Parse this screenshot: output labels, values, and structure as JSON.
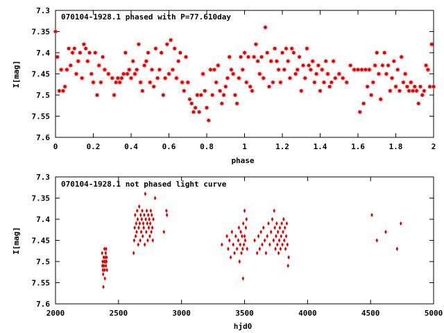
{
  "chart_data": [
    {
      "type": "scatter",
      "title": "070104-1928.1 phased with P=77.610day",
      "xlabel": "phase",
      "ylabel": "I[mag]",
      "xlim": [
        0,
        2
      ],
      "ylim": [
        7.3,
        7.6
      ],
      "y_inverted": true,
      "x_ticks": [
        0,
        0.2,
        0.4,
        0.6,
        0.8,
        1,
        1.2,
        1.4,
        1.6,
        1.8,
        2
      ],
      "y_ticks": [
        7.3,
        7.35,
        7.4,
        7.45,
        7.5,
        7.55,
        7.6
      ],
      "marker_color": "#e00000",
      "marker": "star",
      "grid": false,
      "points": [
        [
          0.0,
          7.35
        ],
        [
          0.01,
          7.41
        ],
        [
          0.02,
          7.49
        ],
        [
          0.03,
          7.44
        ],
        [
          0.04,
          7.49
        ],
        [
          0.05,
          7.48
        ],
        [
          0.06,
          7.44
        ],
        [
          0.07,
          7.39
        ],
        [
          0.08,
          7.43
        ],
        [
          0.09,
          7.4
        ],
        [
          0.1,
          7.39
        ],
        [
          0.11,
          7.45
        ],
        [
          0.12,
          7.42
        ],
        [
          0.13,
          7.4
        ],
        [
          0.14,
          7.46
        ],
        [
          0.15,
          7.38
        ],
        [
          0.16,
          7.39
        ],
        [
          0.17,
          7.42
        ],
        [
          0.18,
          7.4
        ],
        [
          0.19,
          7.45
        ],
        [
          0.2,
          7.47
        ],
        [
          0.21,
          7.4
        ],
        [
          0.22,
          7.5
        ],
        [
          0.23,
          7.43
        ],
        [
          0.24,
          7.47
        ],
        [
          0.25,
          7.41
        ],
        [
          0.26,
          7.44
        ],
        [
          0.28,
          7.45
        ],
        [
          0.3,
          7.46
        ],
        [
          0.31,
          7.5
        ],
        [
          0.32,
          7.47
        ],
        [
          0.33,
          7.46
        ],
        [
          0.34,
          7.47
        ],
        [
          0.35,
          7.46
        ],
        [
          0.36,
          7.45
        ],
        [
          0.37,
          7.4
        ],
        [
          0.38,
          7.45
        ],
        [
          0.39,
          7.44
        ],
        [
          0.4,
          7.46
        ],
        [
          0.41,
          7.42
        ],
        [
          0.42,
          7.45
        ],
        [
          0.43,
          7.44
        ],
        [
          0.44,
          7.38
        ],
        [
          0.45,
          7.47
        ],
        [
          0.46,
          7.49
        ],
        [
          0.47,
          7.43
        ],
        [
          0.48,
          7.42
        ],
        [
          0.49,
          7.4
        ],
        [
          0.5,
          7.47
        ],
        [
          0.51,
          7.44
        ],
        [
          0.52,
          7.48
        ],
        [
          0.53,
          7.39
        ],
        [
          0.54,
          7.46
        ],
        [
          0.55,
          7.44
        ],
        [
          0.56,
          7.4
        ],
        [
          0.57,
          7.5
        ],
        [
          0.58,
          7.46
        ],
        [
          0.59,
          7.38
        ],
        [
          0.6,
          7.45
        ],
        [
          0.61,
          7.37
        ],
        [
          0.62,
          7.44
        ],
        [
          0.63,
          7.39
        ],
        [
          0.64,
          7.46
        ],
        [
          0.65,
          7.42
        ],
        [
          0.66,
          7.4
        ],
        [
          0.67,
          7.47
        ],
        [
          0.68,
          7.49
        ],
        [
          0.69,
          7.41
        ],
        [
          0.7,
          7.47
        ],
        [
          0.71,
          7.51
        ],
        [
          0.72,
          7.52
        ],
        [
          0.73,
          7.54
        ],
        [
          0.74,
          7.53
        ],
        [
          0.75,
          7.5
        ],
        [
          0.76,
          7.54
        ],
        [
          0.77,
          7.5
        ],
        [
          0.78,
          7.45
        ],
        [
          0.79,
          7.49
        ],
        [
          0.8,
          7.53
        ],
        [
          0.81,
          7.56
        ],
        [
          0.82,
          7.44
        ],
        [
          0.83,
          7.5
        ],
        [
          0.84,
          7.44
        ],
        [
          0.85,
          7.47
        ],
        [
          0.86,
          7.43
        ],
        [
          0.87,
          7.49
        ],
        [
          0.88,
          7.52
        ],
        [
          0.89,
          7.5
        ],
        [
          0.9,
          7.48
        ],
        [
          0.91,
          7.46
        ],
        [
          0.92,
          7.41
        ],
        [
          0.93,
          7.44
        ],
        [
          0.94,
          7.45
        ],
        [
          0.95,
          7.5
        ],
        [
          0.96,
          7.52
        ],
        [
          0.97,
          7.46
        ],
        [
          0.98,
          7.41
        ],
        [
          0.99,
          7.44
        ],
        [
          1.0,
          7.4
        ],
        [
          1.01,
          7.47
        ],
        [
          1.02,
          7.41
        ],
        [
          1.03,
          7.48
        ],
        [
          1.04,
          7.49
        ],
        [
          1.05,
          7.41
        ],
        [
          1.06,
          7.38
        ],
        [
          1.07,
          7.42
        ],
        [
          1.08,
          7.45
        ],
        [
          1.09,
          7.41
        ],
        [
          1.1,
          7.46
        ],
        [
          1.11,
          7.34
        ],
        [
          1.12,
          7.4
        ],
        [
          1.13,
          7.48
        ],
        [
          1.14,
          7.42
        ],
        [
          1.15,
          7.47
        ],
        [
          1.16,
          7.39
        ],
        [
          1.17,
          7.42
        ],
        [
          1.18,
          7.44
        ],
        [
          1.19,
          7.47
        ],
        [
          1.2,
          7.4
        ],
        [
          1.21,
          7.44
        ],
        [
          1.22,
          7.39
        ],
        [
          1.23,
          7.42
        ],
        [
          1.24,
          7.46
        ],
        [
          1.25,
          7.39
        ],
        [
          1.26,
          7.4
        ],
        [
          1.27,
          7.45
        ],
        [
          1.28,
          7.44
        ],
        [
          1.29,
          7.41
        ],
        [
          1.3,
          7.49
        ],
        [
          1.31,
          7.43
        ],
        [
          1.32,
          7.46
        ],
        [
          1.33,
          7.39
        ],
        [
          1.34,
          7.43
        ],
        [
          1.35,
          7.44
        ],
        [
          1.36,
          7.42
        ],
        [
          1.37,
          7.47
        ],
        [
          1.38,
          7.45
        ],
        [
          1.39,
          7.43
        ],
        [
          1.4,
          7.49
        ],
        [
          1.41,
          7.44
        ],
        [
          1.42,
          7.47
        ],
        [
          1.43,
          7.42
        ],
        [
          1.44,
          7.45
        ],
        [
          1.45,
          7.48
        ],
        [
          1.46,
          7.47
        ],
        [
          1.47,
          7.42
        ],
        [
          1.48,
          7.46
        ],
        [
          1.5,
          7.45
        ],
        [
          1.52,
          7.46
        ],
        [
          1.54,
          7.47
        ],
        [
          1.56,
          7.43
        ],
        [
          1.58,
          7.44
        ],
        [
          1.6,
          7.44
        ],
        [
          1.61,
          7.54
        ],
        [
          1.62,
          7.44
        ],
        [
          1.63,
          7.52
        ],
        [
          1.64,
          7.44
        ],
        [
          1.65,
          7.48
        ],
        [
          1.66,
          7.44
        ],
        [
          1.67,
          7.5
        ],
        [
          1.68,
          7.47
        ],
        [
          1.69,
          7.43
        ],
        [
          1.7,
          7.4
        ],
        [
          1.71,
          7.45
        ],
        [
          1.72,
          7.51
        ],
        [
          1.73,
          7.43
        ],
        [
          1.74,
          7.4
        ],
        [
          1.75,
          7.45
        ],
        [
          1.76,
          7.43
        ],
        [
          1.77,
          7.49
        ],
        [
          1.78,
          7.46
        ],
        [
          1.79,
          7.42
        ],
        [
          1.8,
          7.48
        ],
        [
          1.81,
          7.44
        ],
        [
          1.82,
          7.49
        ],
        [
          1.83,
          7.41
        ],
        [
          1.84,
          7.47
        ],
        [
          1.85,
          7.45
        ],
        [
          1.86,
          7.48
        ],
        [
          1.87,
          7.49
        ],
        [
          1.88,
          7.47
        ],
        [
          1.89,
          7.49
        ],
        [
          1.9,
          7.48
        ],
        [
          1.91,
          7.49
        ],
        [
          1.92,
          7.52
        ],
        [
          1.93,
          7.48
        ],
        [
          1.94,
          7.5
        ],
        [
          1.95,
          7.49
        ],
        [
          1.96,
          7.43
        ],
        [
          1.97,
          7.44
        ],
        [
          1.98,
          7.48
        ],
        [
          1.99,
          7.38
        ],
        [
          2.0,
          7.48
        ]
      ]
    },
    {
      "type": "scatter",
      "title": "070104-1928.1 not phased light curve",
      "xlabel": "hjd0",
      "ylabel": "I[mag]",
      "xlim": [
        2000,
        5000
      ],
      "ylim": [
        7.3,
        7.6
      ],
      "y_inverted": true,
      "x_ticks": [
        2000,
        2500,
        3000,
        3500,
        4000,
        4500,
        5000
      ],
      "y_ticks": [
        7.3,
        7.35,
        7.4,
        7.45,
        7.5,
        7.55,
        7.6
      ],
      "marker_color": "#e00000",
      "marker": "diamond",
      "grid": false,
      "points": [
        [
          2370,
          7.48
        ],
        [
          2372,
          7.51
        ],
        [
          2374,
          7.5
        ],
        [
          2376,
          7.52
        ],
        [
          2378,
          7.53
        ],
        [
          2380,
          7.56
        ],
        [
          2382,
          7.49
        ],
        [
          2384,
          7.51
        ],
        [
          2386,
          7.5
        ],
        [
          2388,
          7.47
        ],
        [
          2390,
          7.52
        ],
        [
          2392,
          7.54
        ],
        [
          2394,
          7.49
        ],
        [
          2396,
          7.5
        ],
        [
          2398,
          7.48
        ],
        [
          2400,
          7.51
        ],
        [
          2402,
          7.47
        ],
        [
          2404,
          7.5
        ],
        [
          2406,
          7.49
        ],
        [
          2408,
          7.52
        ],
        [
          2620,
          7.48
        ],
        [
          2624,
          7.45
        ],
        [
          2628,
          7.42
        ],
        [
          2632,
          7.39
        ],
        [
          2636,
          7.44
        ],
        [
          2640,
          7.41
        ],
        [
          2644,
          7.43
        ],
        [
          2648,
          7.38
        ],
        [
          2652,
          7.4
        ],
        [
          2656,
          7.46
        ],
        [
          2660,
          7.42
        ],
        [
          2664,
          7.37
        ],
        [
          2668,
          7.41
        ],
        [
          2672,
          7.45
        ],
        [
          2676,
          7.39
        ],
        [
          2680,
          7.43
        ],
        [
          2684,
          7.4
        ],
        [
          2688,
          7.38
        ],
        [
          2692,
          7.44
        ],
        [
          2696,
          7.41
        ],
        [
          2700,
          7.42
        ],
        [
          2704,
          7.39
        ],
        [
          2708,
          7.46
        ],
        [
          2712,
          7.34
        ],
        [
          2716,
          7.4
        ],
        [
          2720,
          7.43
        ],
        [
          2724,
          7.38
        ],
        [
          2728,
          7.41
        ],
        [
          2732,
          7.45
        ],
        [
          2736,
          7.39
        ],
        [
          2740,
          7.42
        ],
        [
          2744,
          7.4
        ],
        [
          2748,
          7.44
        ],
        [
          2752,
          7.41
        ],
        [
          2756,
          7.38
        ],
        [
          2760,
          7.43
        ],
        [
          2764,
          7.39
        ],
        [
          2768,
          7.42
        ],
        [
          2772,
          7.45
        ],
        [
          2776,
          7.4
        ],
        [
          2790,
          7.35
        ],
        [
          2860,
          7.43
        ],
        [
          2880,
          7.38
        ],
        [
          2884,
          7.39
        ],
        [
          3320,
          7.46
        ],
        [
          3360,
          7.44
        ],
        [
          3370,
          7.47
        ],
        [
          3380,
          7.45
        ],
        [
          3390,
          7.49
        ],
        [
          3400,
          7.43
        ],
        [
          3410,
          7.46
        ],
        [
          3420,
          7.48
        ],
        [
          3430,
          7.44
        ],
        [
          3440,
          7.47
        ],
        [
          3450,
          7.45
        ],
        [
          3455,
          7.42
        ],
        [
          3460,
          7.5
        ],
        [
          3465,
          7.46
        ],
        [
          3470,
          7.43
        ],
        [
          3475,
          7.48
        ],
        [
          3480,
          7.44
        ],
        [
          3485,
          7.47
        ],
        [
          3490,
          7.41
        ],
        [
          3495,
          7.46
        ],
        [
          3500,
          7.44
        ],
        [
          3505,
          7.45
        ],
        [
          3510,
          7.42
        ],
        [
          3515,
          7.4
        ],
        [
          3520,
          7.47
        ],
        [
          3500,
          7.38
        ],
        [
          3488,
          7.54
        ],
        [
          3580,
          7.45
        ],
        [
          3600,
          7.48
        ],
        [
          3610,
          7.44
        ],
        [
          3620,
          7.47
        ],
        [
          3630,
          7.43
        ],
        [
          3640,
          7.46
        ],
        [
          3650,
          7.42
        ],
        [
          3660,
          7.45
        ],
        [
          3670,
          7.48
        ],
        [
          3680,
          7.44
        ],
        [
          3690,
          7.41
        ],
        [
          3700,
          7.46
        ],
        [
          3710,
          7.43
        ],
        [
          3720,
          7.4
        ],
        [
          3730,
          7.45
        ],
        [
          3735,
          7.38
        ],
        [
          3740,
          7.42
        ],
        [
          3745,
          7.47
        ],
        [
          3750,
          7.44
        ],
        [
          3755,
          7.41
        ],
        [
          3760,
          7.46
        ],
        [
          3765,
          7.43
        ],
        [
          3770,
          7.48
        ],
        [
          3775,
          7.45
        ],
        [
          3780,
          7.42
        ],
        [
          3785,
          7.47
        ],
        [
          3790,
          7.44
        ],
        [
          3795,
          7.41
        ],
        [
          3800,
          7.46
        ],
        [
          3805,
          7.43
        ],
        [
          3810,
          7.4
        ],
        [
          3815,
          7.45
        ],
        [
          3820,
          7.42
        ],
        [
          3825,
          7.47
        ],
        [
          3830,
          7.44
        ],
        [
          3835,
          7.41
        ],
        [
          3840,
          7.46
        ],
        [
          3845,
          7.51
        ],
        [
          3850,
          7.49
        ],
        [
          4510,
          7.39
        ],
        [
          4550,
          7.45
        ],
        [
          4620,
          7.43
        ],
        [
          4710,
          7.47
        ],
        [
          4740,
          7.41
        ]
      ]
    }
  ]
}
